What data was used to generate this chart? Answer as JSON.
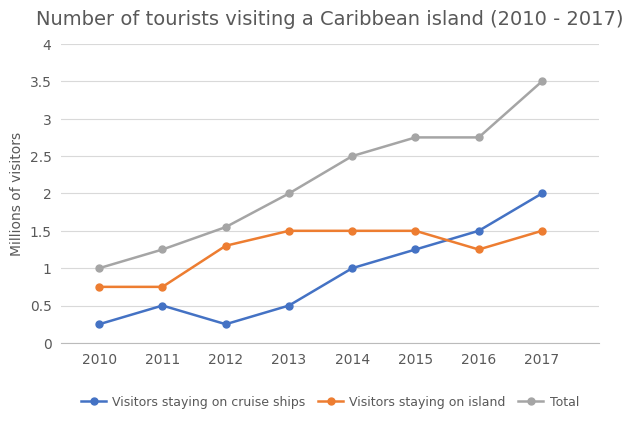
{
  "title": "Number of tourists visiting a Caribbean island (2010 - 2017)",
  "years": [
    2010,
    2011,
    2012,
    2013,
    2014,
    2015,
    2016,
    2017
  ],
  "cruise_ships": [
    0.25,
    0.5,
    0.25,
    0.5,
    1.0,
    1.25,
    1.5,
    2.0
  ],
  "on_island": [
    0.75,
    0.75,
    1.3,
    1.5,
    1.5,
    1.5,
    1.25,
    1.5
  ],
  "total": [
    1.0,
    1.25,
    1.55,
    2.0,
    2.5,
    2.75,
    2.75,
    3.5
  ],
  "cruise_color": "#4472C4",
  "island_color": "#ED7D31",
  "total_color": "#A5A5A5",
  "ylabel": "Millions of visitors",
  "ylim": [
    0,
    4
  ],
  "yticks": [
    0,
    0.5,
    1.0,
    1.5,
    2.0,
    2.5,
    3.0,
    3.5,
    4.0
  ],
  "ytick_labels": [
    "0",
    "0.5",
    "1",
    "1.5",
    "2",
    "2.5",
    "3",
    "3.5",
    "4"
  ],
  "legend_labels": [
    "Visitors staying on cruise ships",
    "Visitors staying on island",
    "Total"
  ],
  "background_color": "#ffffff",
  "grid_color": "#d9d9d9",
  "title_fontsize": 14,
  "title_color": "#595959",
  "tick_fontsize": 10,
  "ylabel_fontsize": 10,
  "legend_fontsize": 9,
  "line_width": 1.8,
  "marker_size": 5
}
